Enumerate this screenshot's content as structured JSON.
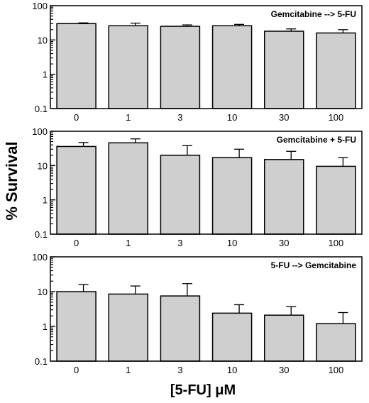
{
  "ylabel": "% Survival",
  "xlabel": "[5-FU] μM",
  "chart_data": [
    {
      "type": "bar",
      "title": "Gemcitabine --> 5-FU",
      "categories": [
        "0",
        "1",
        "3",
        "10",
        "30",
        "100"
      ],
      "values": [
        30,
        26,
        25,
        26,
        18,
        16
      ],
      "error_upper": [
        31.5,
        31,
        27.5,
        28.5,
        21,
        20
      ],
      "yscale": "log",
      "ylim": [
        0.1,
        100
      ],
      "yticks": [
        "100",
        "10",
        "1",
        "0.1"
      ],
      "bar_color": "#cfcfcf"
    },
    {
      "type": "bar",
      "title": "Gemcitabine + 5-FU",
      "categories": [
        "0",
        "1",
        "3",
        "10",
        "30",
        "100"
      ],
      "values": [
        36,
        46,
        20,
        17,
        15,
        9.5
      ],
      "error_upper": [
        47,
        60,
        38,
        30,
        26,
        17
      ],
      "yscale": "log",
      "ylim": [
        0.1,
        100
      ],
      "yticks": [
        "100",
        "10",
        "1",
        "0.1"
      ],
      "bar_color": "#cfcfcf"
    },
    {
      "type": "bar",
      "title": "5-FU --> Gemcitabine",
      "categories": [
        "0",
        "1",
        "3",
        "10",
        "30",
        "100"
      ],
      "values": [
        10,
        8.5,
        7.5,
        2.4,
        2.1,
        1.2
      ],
      "error_upper": [
        16,
        14.5,
        17,
        4.2,
        3.7,
        2.5
      ],
      "yscale": "log",
      "ylim": [
        0.1,
        100
      ],
      "yticks": [
        "100",
        "10",
        "1",
        "0.1"
      ],
      "bar_color": "#cfcfcf"
    }
  ]
}
